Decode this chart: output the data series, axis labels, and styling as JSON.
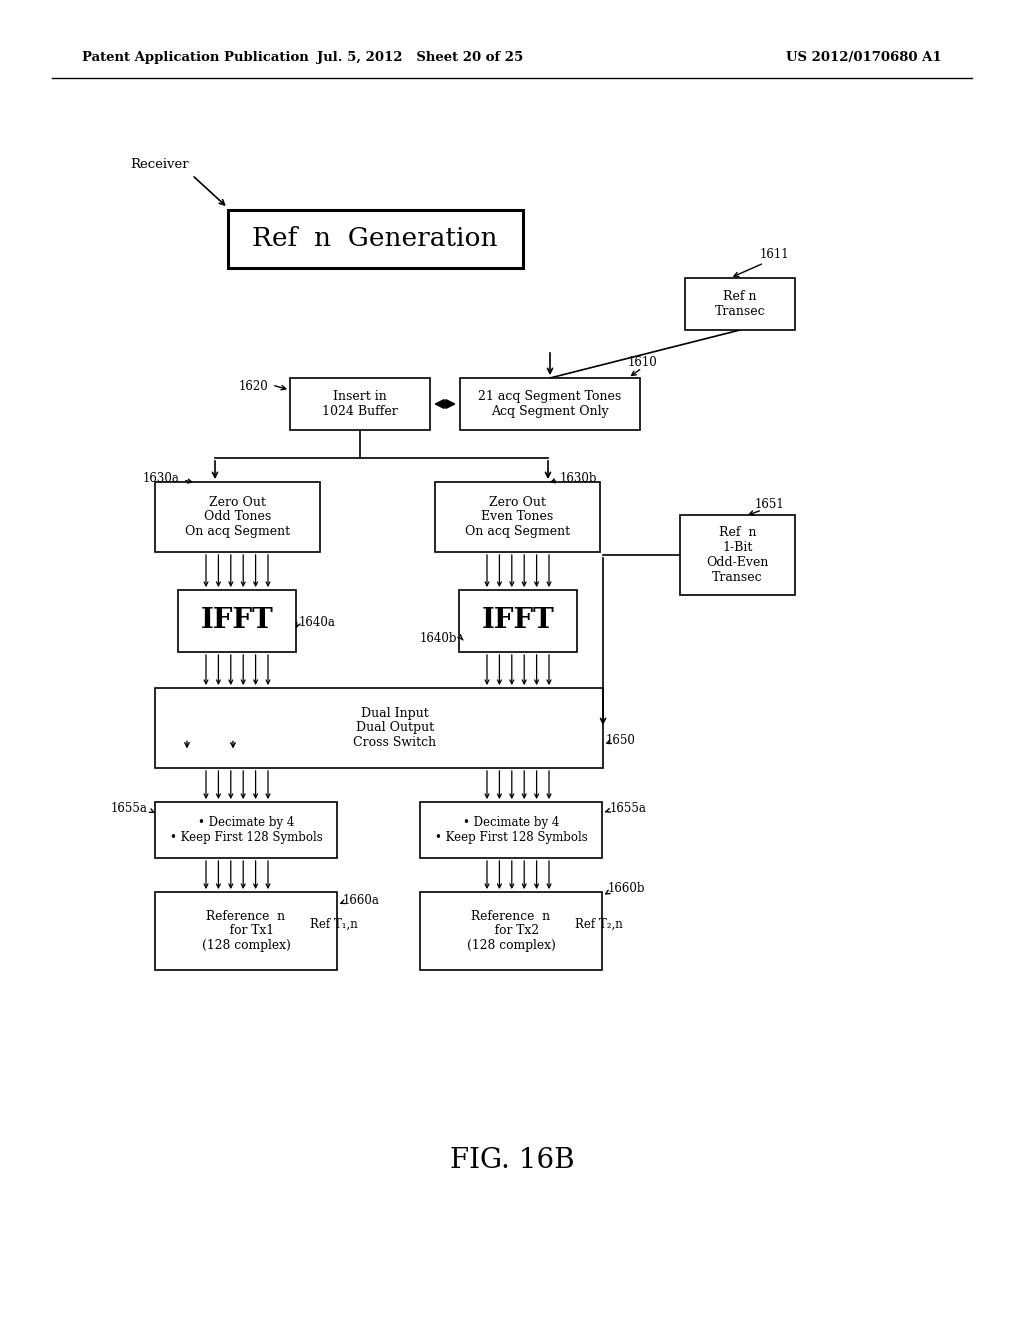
{
  "bg_color": "#ffffff",
  "header_left": "Patent Application Publication",
  "header_center": "Jul. 5, 2012   Sheet 20 of 25",
  "header_right": "US 2012/0170680 A1",
  "fig_label": "FIG. 16B"
}
